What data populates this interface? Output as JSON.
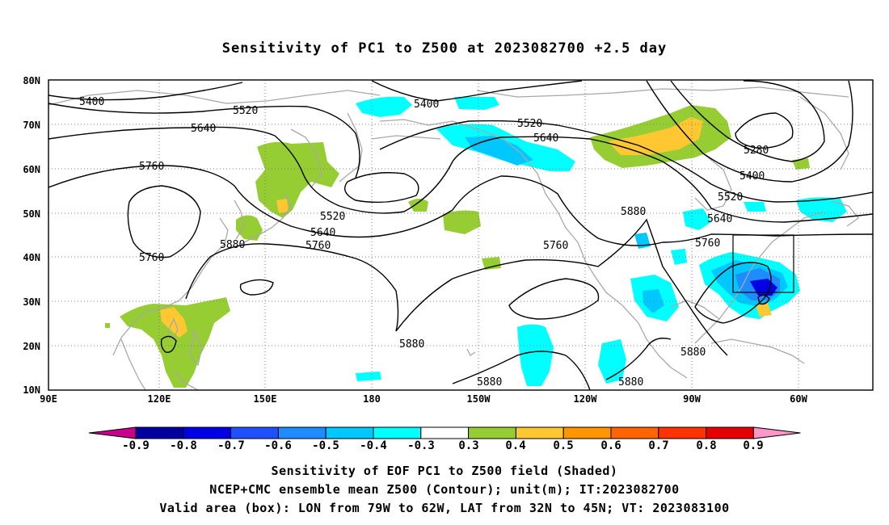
{
  "title": "Sensitivity of PC1 to Z500 at 2023082700 +2.5 day",
  "lat_labels": [
    "80N",
    "70N",
    "60N",
    "50N",
    "40N",
    "30N",
    "20N",
    "10N"
  ],
  "lon_labels": [
    "90E",
    "120E",
    "150E",
    "180",
    "150W",
    "120W",
    "90W",
    "60W"
  ],
  "contour_labels": [
    "5400",
    "5520",
    "5640",
    "5760",
    "5400",
    "5520",
    "5640",
    "5280",
    "5400",
    "5520",
    "5640",
    "5760",
    "5880",
    "5520",
    "5640",
    "5760",
    "5880",
    "5760",
    "5760",
    "5880",
    "5880",
    "5880",
    "5880"
  ],
  "colorbar": {
    "labels": [
      "-0.9",
      "-0.8",
      "-0.7",
      "-0.6",
      "-0.5",
      "-0.4",
      "-0.3",
      "0.3",
      "0.4",
      "0.5",
      "0.6",
      "0.7",
      "0.8",
      "0.9"
    ],
    "colors": [
      "#c8008c",
      "#0000a0",
      "#0000e6",
      "#1e50ff",
      "#1e8cff",
      "#00c8ff",
      "#00ffff",
      "#ffffff",
      "#96cd32",
      "#ffc832",
      "#ff9600",
      "#ff6400",
      "#ff3200",
      "#e60000",
      "#ff96c8"
    ]
  },
  "colors": {
    "contour": "#000000",
    "coastline": "#a8a8a8",
    "grid": "#808080",
    "green": "#96cd32",
    "yellow": "#ffc832",
    "cyan": "#00ffff",
    "lightblue": "#00c8ff",
    "blue": "#1e8cff",
    "darkblue": "#0000e6"
  },
  "captions": [
    "Sensitivity of EOF PC1 to Z500 field (Shaded)",
    "NCEP+CMC ensemble mean Z500 (Contour); unit(m); IT:2023082700",
    "Valid area (box): LON from 79W to 62W, LAT from 32N to 45N; VT: 2023083100"
  ]
}
